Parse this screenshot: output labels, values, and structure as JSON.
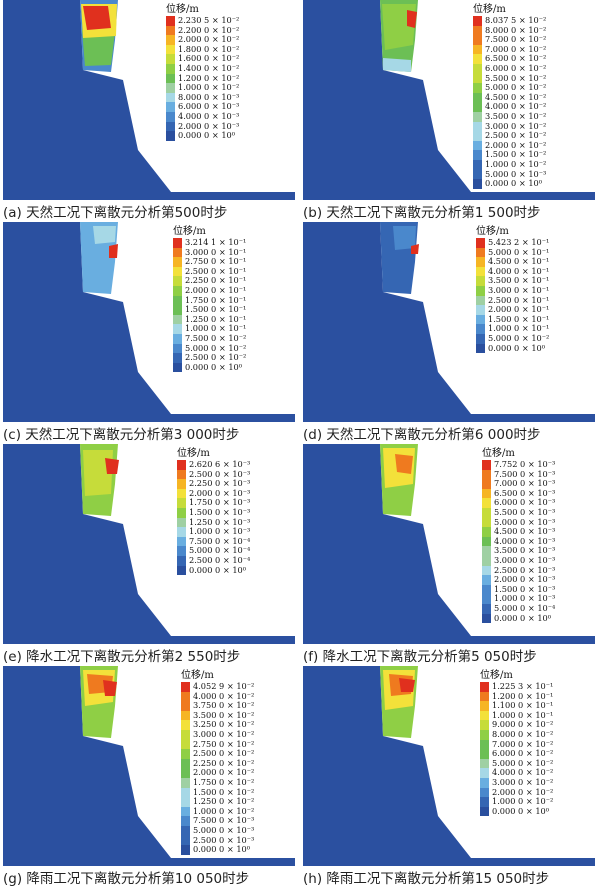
{
  "unit_label": "位移/m",
  "panels": [
    {
      "caption": "(a) 天然工况下离散元分析第500时步",
      "max_label": "2.230 5 × 10⁻²",
      "labels": [
        "2.230 5 × 10⁻²",
        "2.200 0 × 10⁻²",
        "2.000 0 × 10⁻²",
        "1.800 0 × 10⁻²",
        "1.600 0 × 10⁻²",
        "1.400 0 × 10⁻²",
        "1.200 0 × 10⁻²",
        "1.000 0 × 10⁻²",
        "8.000 0 × 10⁻³",
        "6.000 0 × 10⁻³",
        "4.000 0 × 10⁻³",
        "2.000 0 × 10⁻³",
        "0.000 0 × 10⁰"
      ]
    },
    {
      "caption": "(b) 天然工况下离散元分析第1 500时步",
      "max_label": "8.037 5 × 10⁻²",
      "labels": [
        "8.037 5 × 10⁻²",
        "8.000 0 × 10⁻²",
        "7.500 0 × 10⁻²",
        "7.000 0 × 10⁻²",
        "6.500 0 × 10⁻²",
        "6.000 0 × 10⁻²",
        "5.500 0 × 10⁻²",
        "5.000 0 × 10⁻²",
        "4.500 0 × 10⁻²",
        "4.000 0 × 10⁻²",
        "3.500 0 × 10⁻²",
        "3.000 0 × 10⁻²",
        "2.500 0 × 10⁻²",
        "2.000 0 × 10⁻²",
        "1.500 0 × 10⁻²",
        "1.000 0 × 10⁻²",
        "5.000 0 × 10⁻³",
        "0.000 0 × 10⁰"
      ]
    },
    {
      "caption": "(c) 天然工况下离散元分析第3 000时步",
      "max_label": "3.214 1 × 10⁻¹",
      "labels": [
        "3.214 1 × 10⁻¹",
        "3.000 0 × 10⁻¹",
        "2.750 0 × 10⁻¹",
        "2.500 0 × 10⁻¹",
        "2.250 0 × 10⁻¹",
        "2.000 0 × 10⁻¹",
        "1.750 0 × 10⁻¹",
        "1.500 0 × 10⁻¹",
        "1.250 0 × 10⁻¹",
        "1.000 0 × 10⁻¹",
        "7.500 0 × 10⁻²",
        "5.000 0 × 10⁻²",
        "2.500 0 × 10⁻²",
        "0.000 0 × 10⁰"
      ]
    },
    {
      "caption": "(d) 天然工况下离散元分析第6 000时步",
      "max_label": "5.423 2 × 10⁻¹",
      "labels": [
        "5.423 2 × 10⁻¹",
        "5.000 0 × 10⁻¹",
        "4.500 0 × 10⁻¹",
        "4.000 0 × 10⁻¹",
        "3.500 0 × 10⁻¹",
        "3.000 0 × 10⁻¹",
        "2.500 0 × 10⁻¹",
        "2.000 0 × 10⁻¹",
        "1.500 0 × 10⁻¹",
        "1.000 0 × 10⁻¹",
        "5.000 0 × 10⁻²",
        "0.000 0 × 10⁰"
      ]
    },
    {
      "caption": "(e) 降水工况下离散元分析第2 550时步",
      "max_label": "2.620 6 × 10⁻³",
      "labels": [
        "2.620 6 × 10⁻³",
        "2.500 0 × 10⁻³",
        "2.250 0 × 10⁻³",
        "2.000 0 × 10⁻³",
        "1.750 0 × 10⁻³",
        "1.500 0 × 10⁻³",
        "1.250 0 × 10⁻³",
        "1.000 0 × 10⁻³",
        "7.500 0 × 10⁻⁴",
        "5.000 0 × 10⁻⁴",
        "2.500 0 × 10⁻⁴",
        "0.000 0 × 10⁰"
      ]
    },
    {
      "caption": "(f) 降水工况下离散元分析第5 050时步",
      "max_label": "7.752 0 × 10⁻³",
      "labels": [
        "7.752 0 × 10⁻³",
        "7.500 0 × 10⁻³",
        "7.000 0 × 10⁻³",
        "6.500 0 × 10⁻³",
        "6.000 0 × 10⁻³",
        "5.500 0 × 10⁻³",
        "5.000 0 × 10⁻³",
        "4.500 0 × 10⁻³",
        "4.000 0 × 10⁻³",
        "3.500 0 × 10⁻³",
        "3.000 0 × 10⁻³",
        "2.500 0 × 10⁻³",
        "2.000 0 × 10⁻³",
        "1.500 0 × 10⁻³",
        "1.000 0 × 10⁻³",
        "5.000 0 × 10⁻⁴",
        "0.000 0 × 10⁰"
      ]
    },
    {
      "caption": "(g) 降雨工况下离散元分析第10 050时步",
      "max_label": "4.052 9 × 10⁻²",
      "labels": [
        "4.052 9 × 10⁻²",
        "4.000 0 × 10⁻²",
        "3.750 0 × 10⁻²",
        "3.500 0 × 10⁻²",
        "3.250 0 × 10⁻²",
        "3.000 0 × 10⁻²",
        "2.750 0 × 10⁻²",
        "2.500 0 × 10⁻²",
        "2.250 0 × 10⁻²",
        "2.000 0 × 10⁻²",
        "1.750 0 × 10⁻²",
        "1.500 0 × 10⁻²",
        "1.250 0 × 10⁻²",
        "1.000 0 × 10⁻²",
        "7.500 0 × 10⁻³",
        "5.000 0 × 10⁻³",
        "2.500 0 × 10⁻³",
        "0.000 0 × 10⁰"
      ]
    },
    {
      "caption": "(h) 降雨工况下离散元分析第15 050时步",
      "max_label": "1.225 3 × 10⁻¹",
      "labels": [
        "1.225 3 × 10⁻¹",
        "1.200 0 × 10⁻¹",
        "1.100 0 × 10⁻¹",
        "1.000 0 × 10⁻¹",
        "9.000 0 × 10⁻²",
        "8.000 0 × 10⁻²",
        "7.000 0 × 10⁻²",
        "6.000 0 × 10⁻²",
        "5.000 0 × 10⁻²",
        "4.000 0 × 10⁻²",
        "3.000 0 × 10⁻²",
        "2.000 0 × 10⁻²",
        "1.000 0 × 10⁻²",
        "0.000 0 × 10⁰"
      ]
    }
  ],
  "colors": {
    "rock": "#2b50a0",
    "scale_low_to_high": [
      "#2a4f9e",
      "#3566b3",
      "#4a88cc",
      "#69aee0",
      "#a6d8e6",
      "#9fd0a3",
      "#6cbf55",
      "#8fcf45",
      "#c6dc3a",
      "#f3e13a",
      "#f6b524",
      "#ef7a1f",
      "#e0301e"
    ]
  }
}
